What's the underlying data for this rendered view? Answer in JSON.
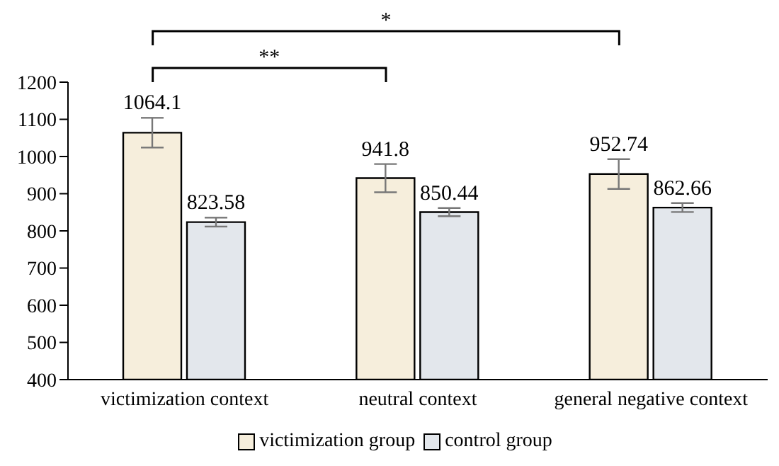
{
  "chart_data": {
    "type": "bar",
    "categories": [
      "victimization context",
      "neutral context",
      "general negative context"
    ],
    "series": [
      {
        "name": "victimization group",
        "color": "#f6eedc",
        "values": [
          1064.1,
          941.8,
          952.74
        ],
        "errors": [
          40,
          38,
          40
        ]
      },
      {
        "name": "control group",
        "color": "#e3e7ec",
        "values": [
          823.58,
          850.44,
          862.66
        ],
        "errors": [
          12,
          11,
          12
        ]
      }
    ],
    "ylim": [
      400,
      1200
    ],
    "yticks": [
      400,
      500,
      600,
      700,
      800,
      900,
      1000,
      1100,
      1200
    ],
    "legend": "bottom",
    "data_labels": true,
    "annotations": [
      "*",
      "**"
    ]
  }
}
